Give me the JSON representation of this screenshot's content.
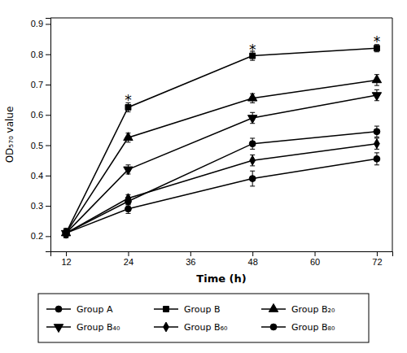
{
  "chart_data": {
    "type": "line",
    "x": [
      12,
      24,
      48,
      72
    ],
    "xlim": [
      9,
      75
    ],
    "ylim": [
      0.15,
      0.92
    ],
    "xticks": [
      12,
      24,
      36,
      48,
      60,
      72
    ],
    "yticks": [
      0.2,
      0.3,
      0.4,
      0.5,
      0.6,
      0.7,
      0.8,
      0.9
    ],
    "xlabel": "Time (h)",
    "ylabel": "OD₅₇₀ value",
    "color": "#000000",
    "grid": false,
    "legend": "bottom",
    "series": [
      {
        "name": "Group A",
        "marker": "circle",
        "values": [
          0.21,
          0.29,
          0.39,
          0.455
        ],
        "errors": [
          0.015,
          0.015,
          0.025,
          0.02
        ]
      },
      {
        "name": "Group B",
        "marker": "square",
        "values": [
          0.21,
          0.625,
          0.795,
          0.82
        ],
        "errors": [
          0.015,
          0.015,
          0.015,
          0.012
        ]
      },
      {
        "name": "Group B₂₀",
        "marker": "triangle-up",
        "values": [
          0.21,
          0.525,
          0.655,
          0.715
        ],
        "errors": [
          0.012,
          0.015,
          0.015,
          0.018
        ]
      },
      {
        "name": "Group B₄₀",
        "marker": "triangle-down",
        "values": [
          0.21,
          0.42,
          0.59,
          0.665
        ],
        "errors": [
          0.012,
          0.015,
          0.018,
          0.018
        ]
      },
      {
        "name": "Group B₆₀",
        "marker": "diamond",
        "values": [
          0.21,
          0.325,
          0.45,
          0.505
        ],
        "errors": [
          0.012,
          0.012,
          0.018,
          0.018
        ]
      },
      {
        "name": "Group B₈₀",
        "marker": "circle",
        "values": [
          0.21,
          0.315,
          0.505,
          0.545
        ],
        "errors": [
          0.012,
          0.012,
          0.018,
          0.018
        ]
      }
    ],
    "annotations": [
      {
        "x": 24,
        "y": 0.648,
        "text": "*"
      },
      {
        "x": 48,
        "y": 0.816,
        "text": "*"
      },
      {
        "x": 72,
        "y": 0.843,
        "text": "*"
      }
    ]
  }
}
